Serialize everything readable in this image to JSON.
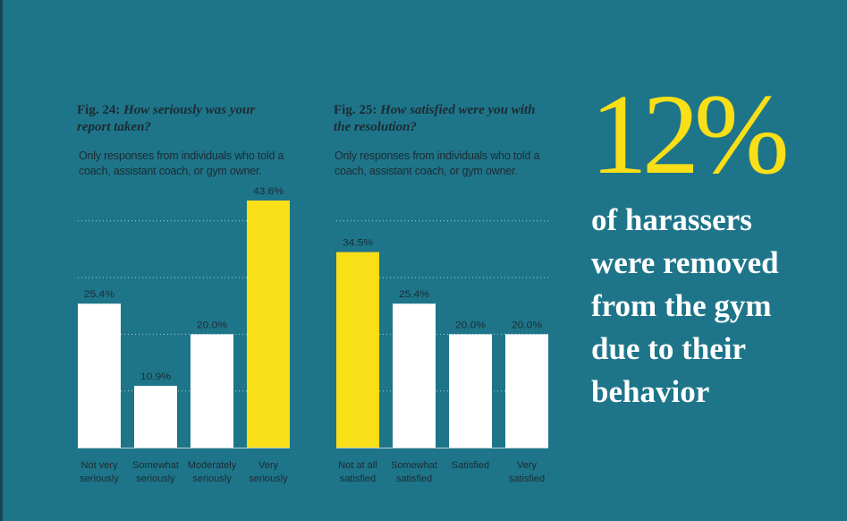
{
  "chart_data": [
    {
      "type": "bar",
      "fig_label": "Fig. 24:",
      "title": "How seriously was your report taken?",
      "subtitle": "Only responses from individuals who told a coach, assistant coach, or gym owner.",
      "categories": [
        "Not very seriously",
        "Somewhat seriously",
        "Moderately seriously",
        "Very seriously"
      ],
      "values": [
        25.4,
        10.9,
        20.0,
        43.6
      ],
      "data_labels": [
        "25.4%",
        "10.9%",
        "20.0%",
        "43.6%"
      ],
      "highlight_index": 3,
      "ylim": [
        0,
        45
      ],
      "grid": true,
      "gridlines": [
        10,
        20,
        30,
        40
      ]
    },
    {
      "type": "bar",
      "fig_label": "Fig. 25:",
      "title": "How satisfied were you with the resolution?",
      "subtitle": "Only responses from individuals who told a coach, assistant coach, or gym owner.",
      "categories": [
        "Not at all satisfied",
        "Somewhat satisfied",
        "Satisfied",
        "Very satisfied"
      ],
      "values": [
        34.5,
        25.4,
        20.0,
        20.0
      ],
      "data_labels": [
        "34.5%",
        "25.4%",
        "20.0%",
        "20.0%"
      ],
      "highlight_index": 0,
      "ylim": [
        0,
        45
      ],
      "grid": true,
      "gridlines": [
        10,
        20,
        30,
        40
      ]
    }
  ],
  "callout": {
    "number": "12%",
    "lines": [
      "of harassers",
      "were removed",
      "from the gym",
      "due to their",
      "behavior"
    ]
  },
  "colors": {
    "background": "#1e7589",
    "highlight": "#f9df17",
    "bar": "#ffffff",
    "text": "#1c2b33"
  }
}
